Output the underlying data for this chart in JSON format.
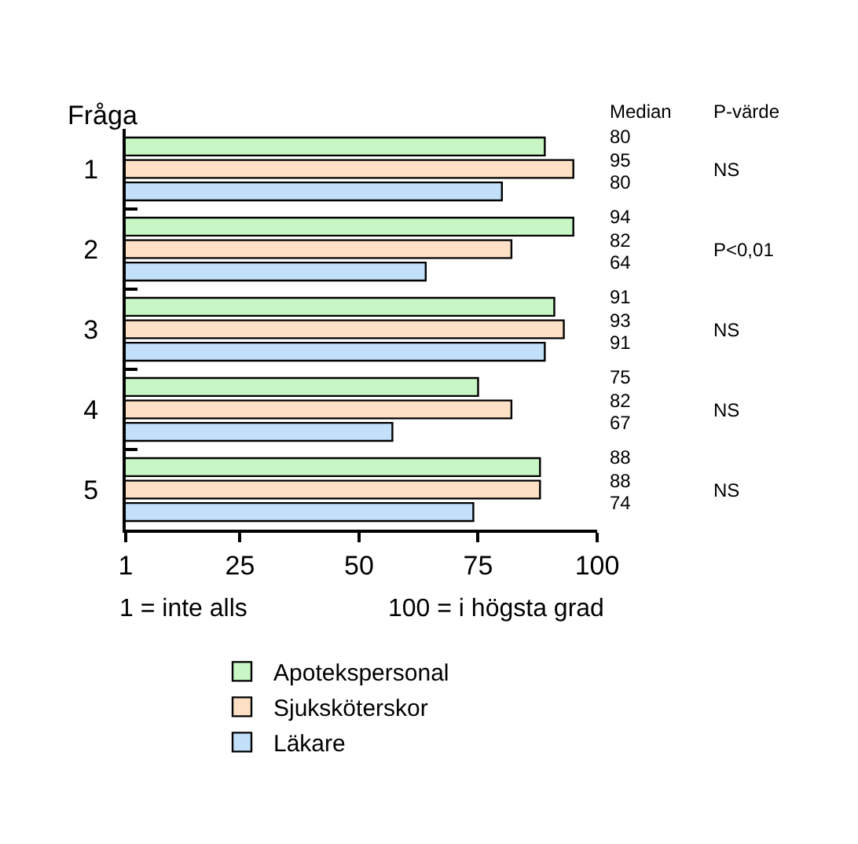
{
  "chart_data": {
    "type": "bar",
    "orientation": "horizontal",
    "ylabel": "Fråga",
    "categories": [
      "1",
      "2",
      "3",
      "4",
      "5"
    ],
    "series": [
      {
        "name": "Apotekspersonal",
        "color": "#c8f7c5",
        "values": [
          89,
          95,
          91,
          75,
          88
        ]
      },
      {
        "name": "Sjuksköterskor",
        "color": "#fde0c5",
        "values": [
          95,
          82,
          93,
          82,
          88
        ]
      },
      {
        "name": "Läkare",
        "color": "#c2e0fa",
        "values": [
          80,
          64,
          89,
          57,
          74
        ]
      }
    ],
    "xlim": [
      1,
      100
    ],
    "xticks": [
      1,
      25,
      50,
      75,
      100
    ],
    "legend": "bottom",
    "annotations": [
      "Median",
      "P-värde",
      "80",
      "95",
      "80",
      "94",
      "82",
      "64",
      "91",
      "93",
      "91",
      "75",
      "82",
      "67",
      "88",
      "88",
      "74",
      "NS",
      "P<0,01",
      "NS",
      "NS",
      "NS",
      "1 = inte alls",
      "100 = i högsta grad"
    ]
  }
}
